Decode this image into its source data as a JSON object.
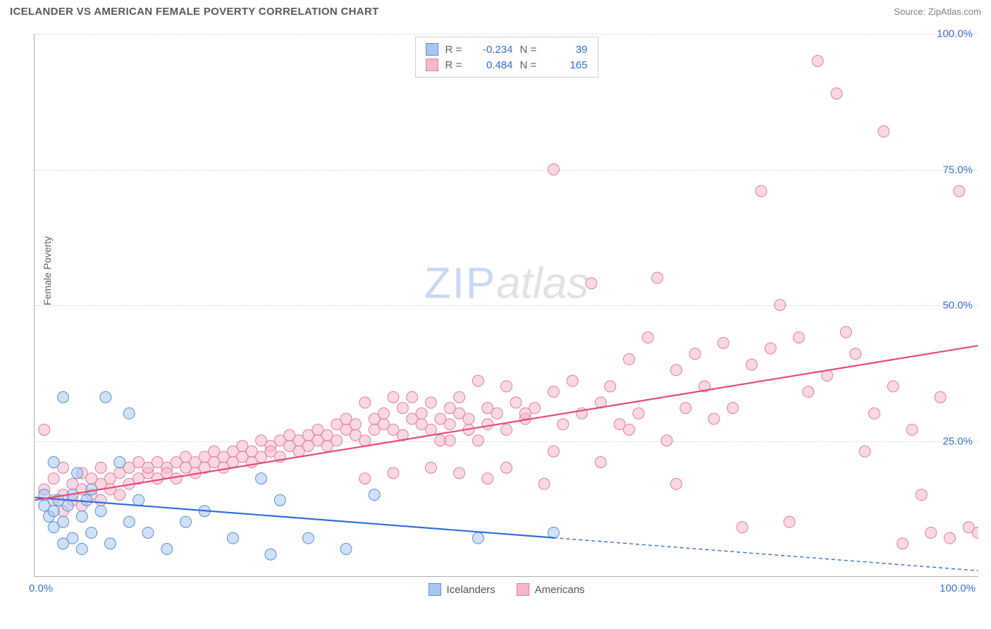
{
  "title": "ICELANDER VS AMERICAN FEMALE POVERTY CORRELATION CHART",
  "source_label": "Source:",
  "source_name": "ZipAtlas.com",
  "y_axis_label": "Female Poverty",
  "watermark": {
    "part1": "ZIP",
    "part2": "atlas"
  },
  "chart": {
    "type": "scatter",
    "xlim": [
      0,
      100
    ],
    "ylim": [
      0,
      100
    ],
    "x_ticks": [
      0,
      100
    ],
    "x_tick_labels": [
      "0.0%",
      "100.0%"
    ],
    "y_ticks": [
      25,
      50,
      75,
      100
    ],
    "y_tick_labels": [
      "25.0%",
      "50.0%",
      "75.0%",
      "100.0%"
    ],
    "grid_color": "#dcdcdc",
    "background_color": "#ffffff",
    "axis_color": "#b0b0b0",
    "tick_label_color": "#3b6fd6",
    "marker_radius": 8,
    "marker_opacity": 0.55,
    "series": [
      {
        "name": "Icelanders",
        "color_fill": "#a9c6f0",
        "color_stroke": "#5a8fd8",
        "r_value": "-0.234",
        "n_value": "39",
        "trend": {
          "y_at_x0": 14.5,
          "y_at_x100": 1.0,
          "solid_until_x": 55,
          "stroke": "#2f6fe0",
          "width": 2.2
        },
        "points": [
          [
            1,
            13
          ],
          [
            1,
            15
          ],
          [
            1.5,
            11
          ],
          [
            2,
            21
          ],
          [
            2,
            12
          ],
          [
            2,
            9
          ],
          [
            2.5,
            14
          ],
          [
            3,
            33
          ],
          [
            3,
            10
          ],
          [
            3,
            6
          ],
          [
            3.5,
            13
          ],
          [
            4,
            15
          ],
          [
            4,
            7
          ],
          [
            4.5,
            19
          ],
          [
            5,
            11
          ],
          [
            5,
            5
          ],
          [
            5.5,
            14
          ],
          [
            6,
            8
          ],
          [
            6,
            16
          ],
          [
            7,
            12
          ],
          [
            7.5,
            33
          ],
          [
            8,
            6
          ],
          [
            9,
            21
          ],
          [
            10,
            30
          ],
          [
            10,
            10
          ],
          [
            11,
            14
          ],
          [
            12,
            8
          ],
          [
            14,
            5
          ],
          [
            16,
            10
          ],
          [
            18,
            12
          ],
          [
            21,
            7
          ],
          [
            24,
            18
          ],
          [
            25,
            4
          ],
          [
            26,
            14
          ],
          [
            29,
            7
          ],
          [
            33,
            5
          ],
          [
            36,
            15
          ],
          [
            47,
            7
          ],
          [
            55,
            8
          ]
        ]
      },
      {
        "name": "Americans",
        "color_fill": "#f4b8c9",
        "color_stroke": "#e07f9c",
        "r_value": "0.484",
        "n_value": "165",
        "trend": {
          "y_at_x0": 14.0,
          "y_at_x100": 42.5,
          "solid_until_x": 100,
          "stroke": "#e84a7a",
          "width": 2.2
        },
        "points": [
          [
            1,
            16
          ],
          [
            1,
            27
          ],
          [
            2,
            14
          ],
          [
            2,
            18
          ],
          [
            3,
            15
          ],
          [
            3,
            12
          ],
          [
            3,
            20
          ],
          [
            4,
            17
          ],
          [
            4,
            14
          ],
          [
            5,
            16
          ],
          [
            5,
            19
          ],
          [
            5,
            13
          ],
          [
            6,
            18
          ],
          [
            6,
            15
          ],
          [
            7,
            17
          ],
          [
            7,
            20
          ],
          [
            7,
            14
          ],
          [
            8,
            18
          ],
          [
            8,
            16
          ],
          [
            9,
            19
          ],
          [
            9,
            15
          ],
          [
            10,
            20
          ],
          [
            10,
            17
          ],
          [
            11,
            18
          ],
          [
            11,
            21
          ],
          [
            12,
            19
          ],
          [
            12,
            20
          ],
          [
            13,
            18
          ],
          [
            13,
            21
          ],
          [
            14,
            20
          ],
          [
            14,
            19
          ],
          [
            15,
            21
          ],
          [
            15,
            18
          ],
          [
            16,
            20
          ],
          [
            16,
            22
          ],
          [
            17,
            21
          ],
          [
            17,
            19
          ],
          [
            18,
            22
          ],
          [
            18,
            20
          ],
          [
            19,
            23
          ],
          [
            19,
            21
          ],
          [
            20,
            22
          ],
          [
            20,
            20
          ],
          [
            21,
            23
          ],
          [
            21,
            21
          ],
          [
            22,
            22
          ],
          [
            22,
            24
          ],
          [
            23,
            23
          ],
          [
            23,
            21
          ],
          [
            24,
            25
          ],
          [
            24,
            22
          ],
          [
            25,
            24
          ],
          [
            25,
            23
          ],
          [
            26,
            25
          ],
          [
            26,
            22
          ],
          [
            27,
            24
          ],
          [
            27,
            26
          ],
          [
            28,
            25
          ],
          [
            28,
            23
          ],
          [
            29,
            26
          ],
          [
            29,
            24
          ],
          [
            30,
            27
          ],
          [
            30,
            25
          ],
          [
            31,
            26
          ],
          [
            31,
            24
          ],
          [
            32,
            28
          ],
          [
            32,
            25
          ],
          [
            33,
            27
          ],
          [
            33,
            29
          ],
          [
            34,
            26
          ],
          [
            34,
            28
          ],
          [
            35,
            32
          ],
          [
            35,
            25
          ],
          [
            36,
            29
          ],
          [
            36,
            27
          ],
          [
            37,
            28
          ],
          [
            37,
            30
          ],
          [
            38,
            19
          ],
          [
            38,
            27
          ],
          [
            39,
            31
          ],
          [
            39,
            26
          ],
          [
            40,
            29
          ],
          [
            40,
            33
          ],
          [
            41,
            28
          ],
          [
            41,
            30
          ],
          [
            42,
            27
          ],
          [
            42,
            32
          ],
          [
            43,
            29
          ],
          [
            43,
            25
          ],
          [
            44,
            31
          ],
          [
            44,
            28
          ],
          [
            45,
            30
          ],
          [
            45,
            33
          ],
          [
            46,
            27
          ],
          [
            46,
            29
          ],
          [
            47,
            36
          ],
          [
            47,
            25
          ],
          [
            48,
            31
          ],
          [
            48,
            28
          ],
          [
            49,
            30
          ],
          [
            50,
            35
          ],
          [
            50,
            27
          ],
          [
            51,
            32
          ],
          [
            52,
            29
          ],
          [
            53,
            31
          ],
          [
            54,
            17
          ],
          [
            55,
            34
          ],
          [
            55,
            75
          ],
          [
            56,
            28
          ],
          [
            57,
            36
          ],
          [
            58,
            30
          ],
          [
            59,
            54
          ],
          [
            60,
            32
          ],
          [
            61,
            35
          ],
          [
            62,
            28
          ],
          [
            63,
            40
          ],
          [
            64,
            30
          ],
          [
            65,
            44
          ],
          [
            66,
            55
          ],
          [
            67,
            25
          ],
          [
            68,
            38
          ],
          [
            69,
            31
          ],
          [
            70,
            41
          ],
          [
            71,
            35
          ],
          [
            72,
            29
          ],
          [
            73,
            43
          ],
          [
            74,
            31
          ],
          [
            75,
            9
          ],
          [
            76,
            39
          ],
          [
            77,
            71
          ],
          [
            78,
            42
          ],
          [
            79,
            50
          ],
          [
            80,
            10
          ],
          [
            81,
            44
          ],
          [
            82,
            34
          ],
          [
            83,
            95
          ],
          [
            84,
            37
          ],
          [
            85,
            89
          ],
          [
            86,
            45
          ],
          [
            87,
            41
          ],
          [
            88,
            23
          ],
          [
            89,
            30
          ],
          [
            90,
            82
          ],
          [
            91,
            35
          ],
          [
            92,
            6
          ],
          [
            93,
            27
          ],
          [
            94,
            15
          ],
          [
            95,
            8
          ],
          [
            96,
            33
          ],
          [
            97,
            7
          ],
          [
            98,
            71
          ],
          [
            99,
            9
          ],
          [
            100,
            8
          ],
          [
            45,
            19
          ],
          [
            50,
            20
          ],
          [
            55,
            23
          ],
          [
            60,
            21
          ],
          [
            48,
            18
          ],
          [
            52,
            30
          ],
          [
            44,
            25
          ],
          [
            38,
            33
          ],
          [
            42,
            20
          ],
          [
            35,
            18
          ],
          [
            63,
            27
          ],
          [
            68,
            17
          ]
        ]
      }
    ]
  },
  "legend_top": {
    "r_label": "R =",
    "n_label": "N ="
  },
  "legend_bottom": {
    "items": [
      "Icelanders",
      "Americans"
    ]
  }
}
